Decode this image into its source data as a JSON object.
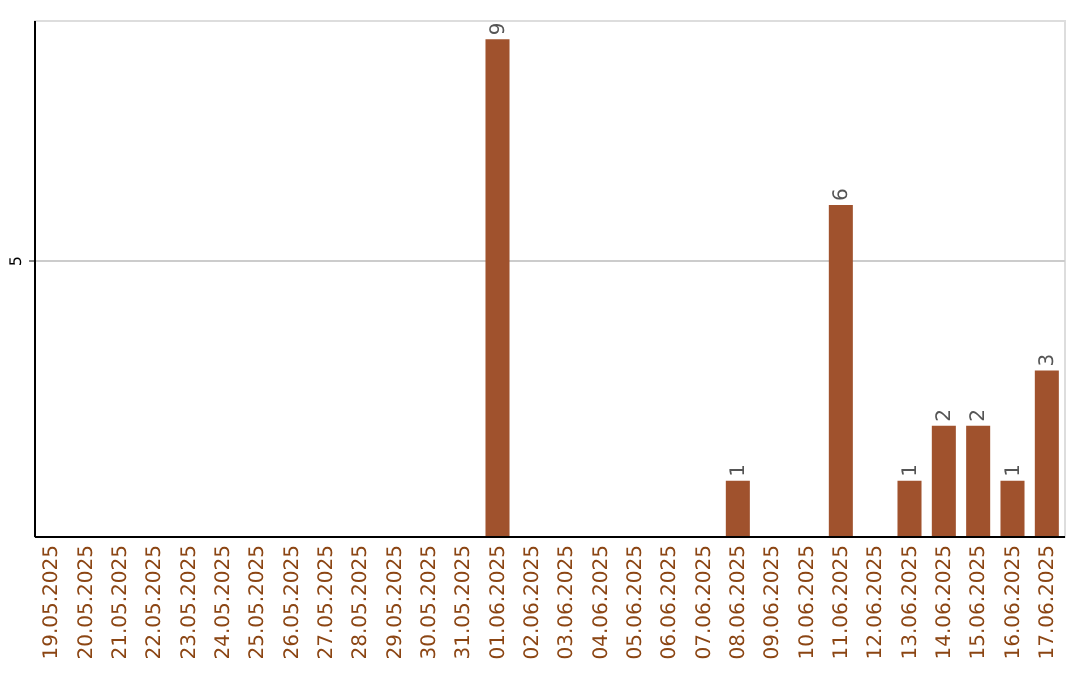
{
  "chart_data": {
    "type": "bar",
    "categories": [
      "19.05.2025",
      "20.05.2025",
      "21.05.2025",
      "22.05.2025",
      "23.05.2025",
      "24.05.2025",
      "25.05.2025",
      "26.05.2025",
      "27.05.2025",
      "28.05.2025",
      "29.05.2025",
      "30.05.2025",
      "31.05.2025",
      "01.06.2025",
      "02.06.2025",
      "03.06.2025",
      "04.06.2025",
      "05.06.2025",
      "06.06.2025",
      "07.06.2025",
      "08.06.2025",
      "09.06.2025",
      "10.06.2025",
      "11.06.2025",
      "12.06.2025",
      "13.06.2025",
      "14.06.2025",
      "15.06.2025",
      "16.06.2025",
      "17.06.2025"
    ],
    "values": [
      null,
      null,
      null,
      null,
      null,
      null,
      null,
      null,
      null,
      null,
      null,
      null,
      null,
      9,
      null,
      null,
      null,
      null,
      null,
      null,
      1,
      null,
      null,
      6,
      null,
      1,
      2,
      2,
      1,
      3
    ],
    "value_labels": [
      null,
      null,
      null,
      null,
      null,
      null,
      null,
      null,
      null,
      null,
      null,
      null,
      null,
      "9",
      null,
      null,
      null,
      null,
      null,
      null,
      "1",
      null,
      null,
      "6",
      null,
      "1",
      "2",
      "2",
      "1",
      "3"
    ],
    "color": "#a0522d",
    "ylim": [
      0,
      9.35
    ],
    "yticks": [
      5
    ],
    "grid": "y"
  }
}
